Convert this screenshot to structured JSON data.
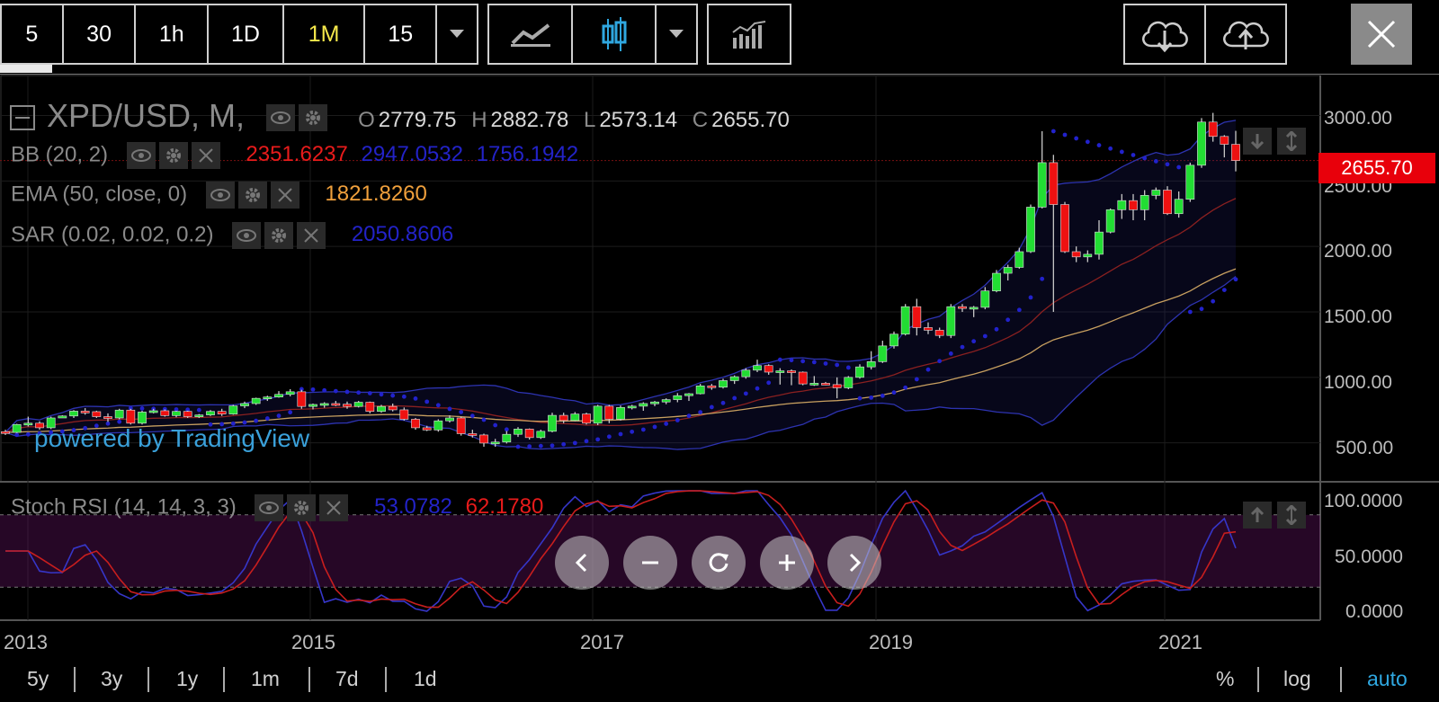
{
  "toolbar": {
    "intervals": [
      "5",
      "30",
      "1h",
      "1D",
      "1M",
      "15"
    ],
    "active_interval": "1M"
  },
  "symbol": {
    "title": "XPD/USD, M,",
    "ohlc": [
      {
        "k": "O",
        "v": "2779.75"
      },
      {
        "k": "H",
        "v": "2882.78"
      },
      {
        "k": "L",
        "v": "2573.14"
      },
      {
        "k": "C",
        "v": "2655.70"
      }
    ]
  },
  "indicators": {
    "bb": {
      "name": "BB (20, 2)",
      "v1": "2351.6237",
      "v2": "2947.0532",
      "v3": "1756.1942"
    },
    "ema": {
      "name": "EMA (50, close, 0)",
      "v1": "1821.8260"
    },
    "sar": {
      "name": "SAR (0.02, 0.02, 0.2)",
      "v1": "2050.8606"
    },
    "stoch": {
      "name": "Stoch RSI (14, 14, 3, 3)",
      "v1": "53.0782",
      "v2": "62.1780"
    }
  },
  "price_tag": "2655.70",
  "watermark": "powered by TradingView",
  "y_axis": [
    "3000.00",
    "2500.00",
    "2000.00",
    "1500.00",
    "1000.00",
    "500.00"
  ],
  "stoch_axis": [
    "100.0000",
    "50.0000",
    "0.0000"
  ],
  "x_axis": [
    "2013",
    "2015",
    "2017",
    "2019",
    "2021"
  ],
  "ranges": [
    "5y",
    "3y",
    "1y",
    "1m",
    "7d",
    "1d"
  ],
  "scale_opts": [
    "%",
    "log",
    "auto"
  ],
  "colors": {
    "up": "#22dd33",
    "down": "#ee1111",
    "bb": "#2d33b0",
    "ema": "#c8a060",
    "sar": "#2222cc",
    "stoch_k": "#3636c8",
    "stoch_d": "#c81e1e",
    "accent": "#2fa7e0"
  },
  "chart_data": {
    "type": "candlestick",
    "title": "XPD/USD, M,",
    "ylim": [
      300,
      3250
    ],
    "ohlc": [
      {
        "t": "2012-07",
        "o": 585,
        "h": 600,
        "l": 560,
        "c": 580
      },
      {
        "t": "2012-08",
        "o": 580,
        "h": 645,
        "l": 575,
        "c": 640
      },
      {
        "t": "2012-09",
        "o": 640,
        "h": 700,
        "l": 625,
        "c": 650
      },
      {
        "t": "2012-10",
        "o": 650,
        "h": 665,
        "l": 600,
        "c": 615
      },
      {
        "t": "2012-11",
        "o": 615,
        "h": 700,
        "l": 605,
        "c": 690
      },
      {
        "t": "2012-12",
        "o": 690,
        "h": 710,
        "l": 690,
        "c": 705
      },
      {
        "t": "2013-01",
        "o": 705,
        "h": 750,
        "l": 690,
        "c": 742
      },
      {
        "t": "2013-02",
        "o": 742,
        "h": 765,
        "l": 715,
        "c": 738
      },
      {
        "t": "2013-03",
        "o": 738,
        "h": 745,
        "l": 690,
        "c": 700
      },
      {
        "t": "2013-04",
        "o": 700,
        "h": 725,
        "l": 660,
        "c": 690
      },
      {
        "t": "2013-05",
        "o": 690,
        "h": 760,
        "l": 680,
        "c": 750
      },
      {
        "t": "2013-06",
        "o": 750,
        "h": 760,
        "l": 640,
        "c": 650
      },
      {
        "t": "2013-07",
        "o": 650,
        "h": 745,
        "l": 640,
        "c": 735
      },
      {
        "t": "2013-08",
        "o": 735,
        "h": 760,
        "l": 725,
        "c": 745
      },
      {
        "t": "2013-09",
        "o": 745,
        "h": 755,
        "l": 700,
        "c": 708
      },
      {
        "t": "2013-10",
        "o": 708,
        "h": 745,
        "l": 695,
        "c": 740
      },
      {
        "t": "2013-11",
        "o": 740,
        "h": 745,
        "l": 690,
        "c": 700
      },
      {
        "t": "2013-12",
        "o": 700,
        "h": 720,
        "l": 690,
        "c": 713
      },
      {
        "t": "2014-01",
        "o": 713,
        "h": 750,
        "l": 705,
        "c": 740
      },
      {
        "t": "2014-02",
        "o": 740,
        "h": 760,
        "l": 705,
        "c": 720
      },
      {
        "t": "2014-03",
        "o": 720,
        "h": 790,
        "l": 715,
        "c": 782
      },
      {
        "t": "2014-04",
        "o": 782,
        "h": 815,
        "l": 765,
        "c": 800
      },
      {
        "t": "2014-05",
        "o": 800,
        "h": 845,
        "l": 790,
        "c": 840
      },
      {
        "t": "2014-06",
        "o": 840,
        "h": 860,
        "l": 820,
        "c": 850
      },
      {
        "t": "2014-07",
        "o": 850,
        "h": 895,
        "l": 845,
        "c": 870
      },
      {
        "t": "2014-08",
        "o": 870,
        "h": 910,
        "l": 855,
        "c": 890
      },
      {
        "t": "2014-09",
        "o": 890,
        "h": 905,
        "l": 760,
        "c": 778
      },
      {
        "t": "2014-10",
        "o": 778,
        "h": 800,
        "l": 755,
        "c": 793
      },
      {
        "t": "2014-11",
        "o": 793,
        "h": 810,
        "l": 768,
        "c": 800
      },
      {
        "t": "2014-12",
        "o": 800,
        "h": 820,
        "l": 780,
        "c": 795
      },
      {
        "t": "2015-01",
        "o": 795,
        "h": 815,
        "l": 760,
        "c": 778
      },
      {
        "t": "2015-02",
        "o": 778,
        "h": 820,
        "l": 770,
        "c": 810
      },
      {
        "t": "2015-03",
        "o": 810,
        "h": 815,
        "l": 725,
        "c": 740
      },
      {
        "t": "2015-04",
        "o": 740,
        "h": 790,
        "l": 730,
        "c": 778
      },
      {
        "t": "2015-05",
        "o": 778,
        "h": 800,
        "l": 740,
        "c": 752
      },
      {
        "t": "2015-06",
        "o": 752,
        "h": 770,
        "l": 670,
        "c": 680
      },
      {
        "t": "2015-07",
        "o": 680,
        "h": 690,
        "l": 600,
        "c": 615
      },
      {
        "t": "2015-08",
        "o": 615,
        "h": 630,
        "l": 590,
        "c": 598
      },
      {
        "t": "2015-09",
        "o": 598,
        "h": 680,
        "l": 585,
        "c": 668
      },
      {
        "t": "2015-10",
        "o": 668,
        "h": 710,
        "l": 655,
        "c": 690
      },
      {
        "t": "2015-11",
        "o": 690,
        "h": 700,
        "l": 555,
        "c": 570
      },
      {
        "t": "2015-12",
        "o": 570,
        "h": 600,
        "l": 540,
        "c": 560
      },
      {
        "t": "2016-01",
        "o": 560,
        "h": 570,
        "l": 470,
        "c": 498
      },
      {
        "t": "2016-02",
        "o": 498,
        "h": 530,
        "l": 470,
        "c": 506
      },
      {
        "t": "2016-03",
        "o": 506,
        "h": 590,
        "l": 495,
        "c": 565
      },
      {
        "t": "2016-04",
        "o": 565,
        "h": 620,
        "l": 545,
        "c": 605
      },
      {
        "t": "2016-05",
        "o": 605,
        "h": 610,
        "l": 525,
        "c": 540
      },
      {
        "t": "2016-06",
        "o": 540,
        "h": 600,
        "l": 530,
        "c": 588
      },
      {
        "t": "2016-07",
        "o": 588,
        "h": 730,
        "l": 580,
        "c": 710
      },
      {
        "t": "2016-08",
        "o": 710,
        "h": 730,
        "l": 650,
        "c": 670
      },
      {
        "t": "2016-09",
        "o": 670,
        "h": 735,
        "l": 665,
        "c": 720
      },
      {
        "t": "2016-10",
        "o": 720,
        "h": 730,
        "l": 640,
        "c": 650
      },
      {
        "t": "2016-11",
        "o": 650,
        "h": 790,
        "l": 635,
        "c": 780
      },
      {
        "t": "2016-12",
        "o": 780,
        "h": 790,
        "l": 650,
        "c": 680
      },
      {
        "t": "2017-01",
        "o": 680,
        "h": 785,
        "l": 670,
        "c": 770
      },
      {
        "t": "2017-02",
        "o": 770,
        "h": 790,
        "l": 755,
        "c": 780
      },
      {
        "t": "2017-03",
        "o": 780,
        "h": 810,
        "l": 745,
        "c": 800
      },
      {
        "t": "2017-04",
        "o": 800,
        "h": 820,
        "l": 780,
        "c": 812
      },
      {
        "t": "2017-05",
        "o": 812,
        "h": 840,
        "l": 795,
        "c": 830
      },
      {
        "t": "2017-06",
        "o": 830,
        "h": 880,
        "l": 810,
        "c": 860
      },
      {
        "t": "2017-07",
        "o": 860,
        "h": 880,
        "l": 820,
        "c": 875
      },
      {
        "t": "2017-08",
        "o": 875,
        "h": 950,
        "l": 870,
        "c": 935
      },
      {
        "t": "2017-09",
        "o": 935,
        "h": 950,
        "l": 905,
        "c": 925
      },
      {
        "t": "2017-10",
        "o": 925,
        "h": 990,
        "l": 915,
        "c": 975
      },
      {
        "t": "2017-11",
        "o": 975,
        "h": 1015,
        "l": 950,
        "c": 1005
      },
      {
        "t": "2017-12",
        "o": 1005,
        "h": 1070,
        "l": 990,
        "c": 1055
      },
      {
        "t": "2018-01",
        "o": 1055,
        "h": 1135,
        "l": 1040,
        "c": 1090
      },
      {
        "t": "2018-02",
        "o": 1090,
        "h": 1100,
        "l": 1020,
        "c": 1040
      },
      {
        "t": "2018-03",
        "o": 1040,
        "h": 1070,
        "l": 945,
        "c": 1050
      },
      {
        "t": "2018-04",
        "o": 1050,
        "h": 1060,
        "l": 940,
        "c": 1040
      },
      {
        "t": "2018-05",
        "o": 1040,
        "h": 1045,
        "l": 940,
        "c": 950
      },
      {
        "t": "2018-06",
        "o": 950,
        "h": 1010,
        "l": 935,
        "c": 955
      },
      {
        "t": "2018-07",
        "o": 955,
        "h": 965,
        "l": 940,
        "c": 945
      },
      {
        "t": "2018-08",
        "o": 945,
        "h": 1000,
        "l": 840,
        "c": 920
      },
      {
        "t": "2018-09",
        "o": 920,
        "h": 1010,
        "l": 910,
        "c": 1000
      },
      {
        "t": "2018-10",
        "o": 1000,
        "h": 1100,
        "l": 990,
        "c": 1080
      },
      {
        "t": "2018-11",
        "o": 1080,
        "h": 1200,
        "l": 1060,
        "c": 1120
      },
      {
        "t": "2018-12",
        "o": 1120,
        "h": 1280,
        "l": 1110,
        "c": 1240
      },
      {
        "t": "2019-01",
        "o": 1240,
        "h": 1350,
        "l": 1220,
        "c": 1330
      },
      {
        "t": "2019-02",
        "o": 1330,
        "h": 1560,
        "l": 1320,
        "c": 1540
      },
      {
        "t": "2019-03",
        "o": 1540,
        "h": 1600,
        "l": 1320,
        "c": 1380
      },
      {
        "t": "2019-04",
        "o": 1380,
        "h": 1420,
        "l": 1330,
        "c": 1360
      },
      {
        "t": "2019-05",
        "o": 1360,
        "h": 1380,
        "l": 1300,
        "c": 1320
      },
      {
        "t": "2019-06",
        "o": 1320,
        "h": 1560,
        "l": 1300,
        "c": 1540
      },
      {
        "t": "2019-07",
        "o": 1540,
        "h": 1560,
        "l": 1500,
        "c": 1530
      },
      {
        "t": "2019-08",
        "o": 1530,
        "h": 1545,
        "l": 1460,
        "c": 1535
      },
      {
        "t": "2019-09",
        "o": 1535,
        "h": 1690,
        "l": 1520,
        "c": 1660
      },
      {
        "t": "2019-10",
        "o": 1660,
        "h": 1820,
        "l": 1650,
        "c": 1795
      },
      {
        "t": "2019-11",
        "o": 1795,
        "h": 1860,
        "l": 1740,
        "c": 1840
      },
      {
        "t": "2019-12",
        "o": 1840,
        "h": 1990,
        "l": 1830,
        "c": 1960
      },
      {
        "t": "2020-01",
        "o": 1960,
        "h": 2320,
        "l": 1950,
        "c": 2300
      },
      {
        "t": "2020-02",
        "o": 2300,
        "h": 2880,
        "l": 2290,
        "c": 2640
      },
      {
        "t": "2020-03",
        "o": 2640,
        "h": 2700,
        "l": 1500,
        "c": 2320
      },
      {
        "t": "2020-04",
        "o": 2320,
        "h": 2340,
        "l": 1950,
        "c": 1960
      },
      {
        "t": "2020-05",
        "o": 1960,
        "h": 2000,
        "l": 1880,
        "c": 1920
      },
      {
        "t": "2020-06",
        "o": 1920,
        "h": 1970,
        "l": 1880,
        "c": 1940
      },
      {
        "t": "2020-07",
        "o": 1940,
        "h": 2200,
        "l": 1900,
        "c": 2110
      },
      {
        "t": "2020-08",
        "o": 2110,
        "h": 2290,
        "l": 2100,
        "c": 2280
      },
      {
        "t": "2020-09",
        "o": 2280,
        "h": 2400,
        "l": 2210,
        "c": 2350
      },
      {
        "t": "2020-10",
        "o": 2350,
        "h": 2400,
        "l": 2200,
        "c": 2280
      },
      {
        "t": "2020-11",
        "o": 2280,
        "h": 2430,
        "l": 2200,
        "c": 2390
      },
      {
        "t": "2020-12",
        "o": 2390,
        "h": 2450,
        "l": 2360,
        "c": 2430
      },
      {
        "t": "2021-01",
        "o": 2430,
        "h": 2460,
        "l": 2240,
        "c": 2250
      },
      {
        "t": "2021-02",
        "o": 2250,
        "h": 2420,
        "l": 2220,
        "c": 2360
      },
      {
        "t": "2021-03",
        "o": 2360,
        "h": 2640,
        "l": 2340,
        "c": 2620
      },
      {
        "t": "2021-04",
        "o": 2620,
        "h": 2980,
        "l": 2600,
        "c": 2950
      },
      {
        "t": "2021-05",
        "o": 2950,
        "h": 3020,
        "l": 2800,
        "c": 2840
      },
      {
        "t": "2021-06",
        "o": 2840,
        "h": 2850,
        "l": 2680,
        "c": 2780
      },
      {
        "t": "2021-07",
        "o": 2779.75,
        "h": 2882.78,
        "l": 2573.14,
        "c": 2655.7
      }
    ]
  }
}
